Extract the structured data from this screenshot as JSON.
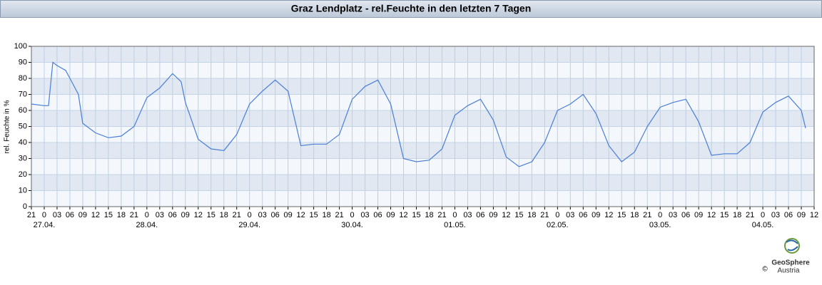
{
  "chart_data": {
    "type": "line",
    "title": "Graz Lendplatz - rel.Feuchte in den letzten 7 Tagen",
    "y_label": "rel. Feuchte in %",
    "logo": "GeoSphere",
    "logo_sub": "Austria",
    "copyright": "©",
    "color": "#4a7fd8",
    "xlim": [
      0,
      183
    ],
    "xticks": [
      {
        "value": 0,
        "label": "21"
      },
      {
        "value": 3,
        "label": "0"
      },
      {
        "value": 6,
        "label": "03"
      },
      {
        "value": 9,
        "label": "06"
      },
      {
        "value": 12,
        "label": "09"
      },
      {
        "value": 15,
        "label": "12"
      },
      {
        "value": 18,
        "label": "15"
      },
      {
        "value": 21,
        "label": "18"
      },
      {
        "value": 24,
        "label": "21"
      },
      {
        "value": 27,
        "label": "0"
      },
      {
        "value": 30,
        "label": "03"
      },
      {
        "value": 33,
        "label": "06"
      },
      {
        "value": 36,
        "label": "09"
      },
      {
        "value": 39,
        "label": "12"
      },
      {
        "value": 42,
        "label": "15"
      },
      {
        "value": 45,
        "label": "18"
      },
      {
        "value": 48,
        "label": "21"
      },
      {
        "value": 51,
        "label": "0"
      },
      {
        "value": 54,
        "label": "03"
      },
      {
        "value": 57,
        "label": "06"
      },
      {
        "value": 60,
        "label": "09"
      },
      {
        "value": 63,
        "label": "12"
      },
      {
        "value": 66,
        "label": "15"
      },
      {
        "value": 69,
        "label": "18"
      },
      {
        "value": 72,
        "label": "21"
      },
      {
        "value": 75,
        "label": "0"
      },
      {
        "value": 78,
        "label": "03"
      },
      {
        "value": 81,
        "label": "06"
      },
      {
        "value": 84,
        "label": "09"
      },
      {
        "value": 87,
        "label": "12"
      },
      {
        "value": 90,
        "label": "15"
      },
      {
        "value": 93,
        "label": "18"
      },
      {
        "value": 96,
        "label": "21"
      },
      {
        "value": 99,
        "label": "0"
      },
      {
        "value": 102,
        "label": "03"
      },
      {
        "value": 105,
        "label": "06"
      },
      {
        "value": 108,
        "label": "09"
      },
      {
        "value": 111,
        "label": "12"
      },
      {
        "value": 114,
        "label": "15"
      },
      {
        "value": 117,
        "label": "18"
      },
      {
        "value": 120,
        "label": "21"
      },
      {
        "value": 123,
        "label": "0"
      },
      {
        "value": 126,
        "label": "03"
      },
      {
        "value": 129,
        "label": "06"
      },
      {
        "value": 132,
        "label": "09"
      },
      {
        "value": 135,
        "label": "12"
      },
      {
        "value": 138,
        "label": "15"
      },
      {
        "value": 141,
        "label": "18"
      },
      {
        "value": 144,
        "label": "21"
      },
      {
        "value": 147,
        "label": "0"
      },
      {
        "value": 150,
        "label": "03"
      },
      {
        "value": 153,
        "label": "06"
      },
      {
        "value": 156,
        "label": "09"
      },
      {
        "value": 159,
        "label": "12"
      },
      {
        "value": 162,
        "label": "15"
      },
      {
        "value": 165,
        "label": "18"
      },
      {
        "value": 168,
        "label": "21"
      },
      {
        "value": 171,
        "label": "0"
      },
      {
        "value": 174,
        "label": "03"
      },
      {
        "value": 177,
        "label": "06"
      },
      {
        "value": 180,
        "label": "09"
      },
      {
        "value": 183,
        "label": "12"
      }
    ],
    "date_labels": [
      {
        "value": 3,
        "label": "27.04."
      },
      {
        "value": 27,
        "label": "28.04."
      },
      {
        "value": 51,
        "label": "29.04."
      },
      {
        "value": 75,
        "label": "30.04."
      },
      {
        "value": 99,
        "label": "01.05."
      },
      {
        "value": 123,
        "label": "02.05."
      },
      {
        "value": 147,
        "label": "03.05."
      },
      {
        "value": 171,
        "label": "04.05."
      }
    ],
    "ylim": [
      0,
      100
    ],
    "yticks": [
      0,
      10,
      20,
      30,
      40,
      50,
      60,
      70,
      80,
      90,
      100
    ],
    "grid": true,
    "x": [
      0,
      3,
      4,
      5,
      6,
      8,
      9,
      11,
      12,
      15,
      18,
      21,
      24,
      27,
      30,
      33,
      35,
      36,
      39,
      42,
      45,
      48,
      51,
      54,
      57,
      60,
      63,
      66,
      69,
      72,
      75,
      78,
      81,
      84,
      87,
      90,
      93,
      96,
      99,
      102,
      105,
      108,
      111,
      114,
      117,
      120,
      123,
      126,
      129,
      132,
      135,
      138,
      141,
      144,
      147,
      150,
      153,
      156,
      159,
      162,
      165,
      168,
      171,
      174,
      177,
      180,
      181
    ],
    "values": [
      64,
      63,
      63,
      90,
      88,
      85,
      80,
      70,
      52,
      46,
      43,
      44,
      50,
      68,
      74,
      83,
      78,
      65,
      42,
      36,
      35,
      45,
      64,
      72,
      79,
      72,
      38,
      39,
      39,
      45,
      67,
      75,
      79,
      64,
      30,
      28,
      29,
      36,
      57,
      63,
      67,
      54,
      31,
      25,
      28,
      40,
      60,
      64,
      70,
      58,
      38,
      28,
      34,
      50,
      62,
      65,
      67,
      53,
      32,
      33,
      33,
      40,
      59,
      65,
      69,
      60,
      49
    ]
  }
}
